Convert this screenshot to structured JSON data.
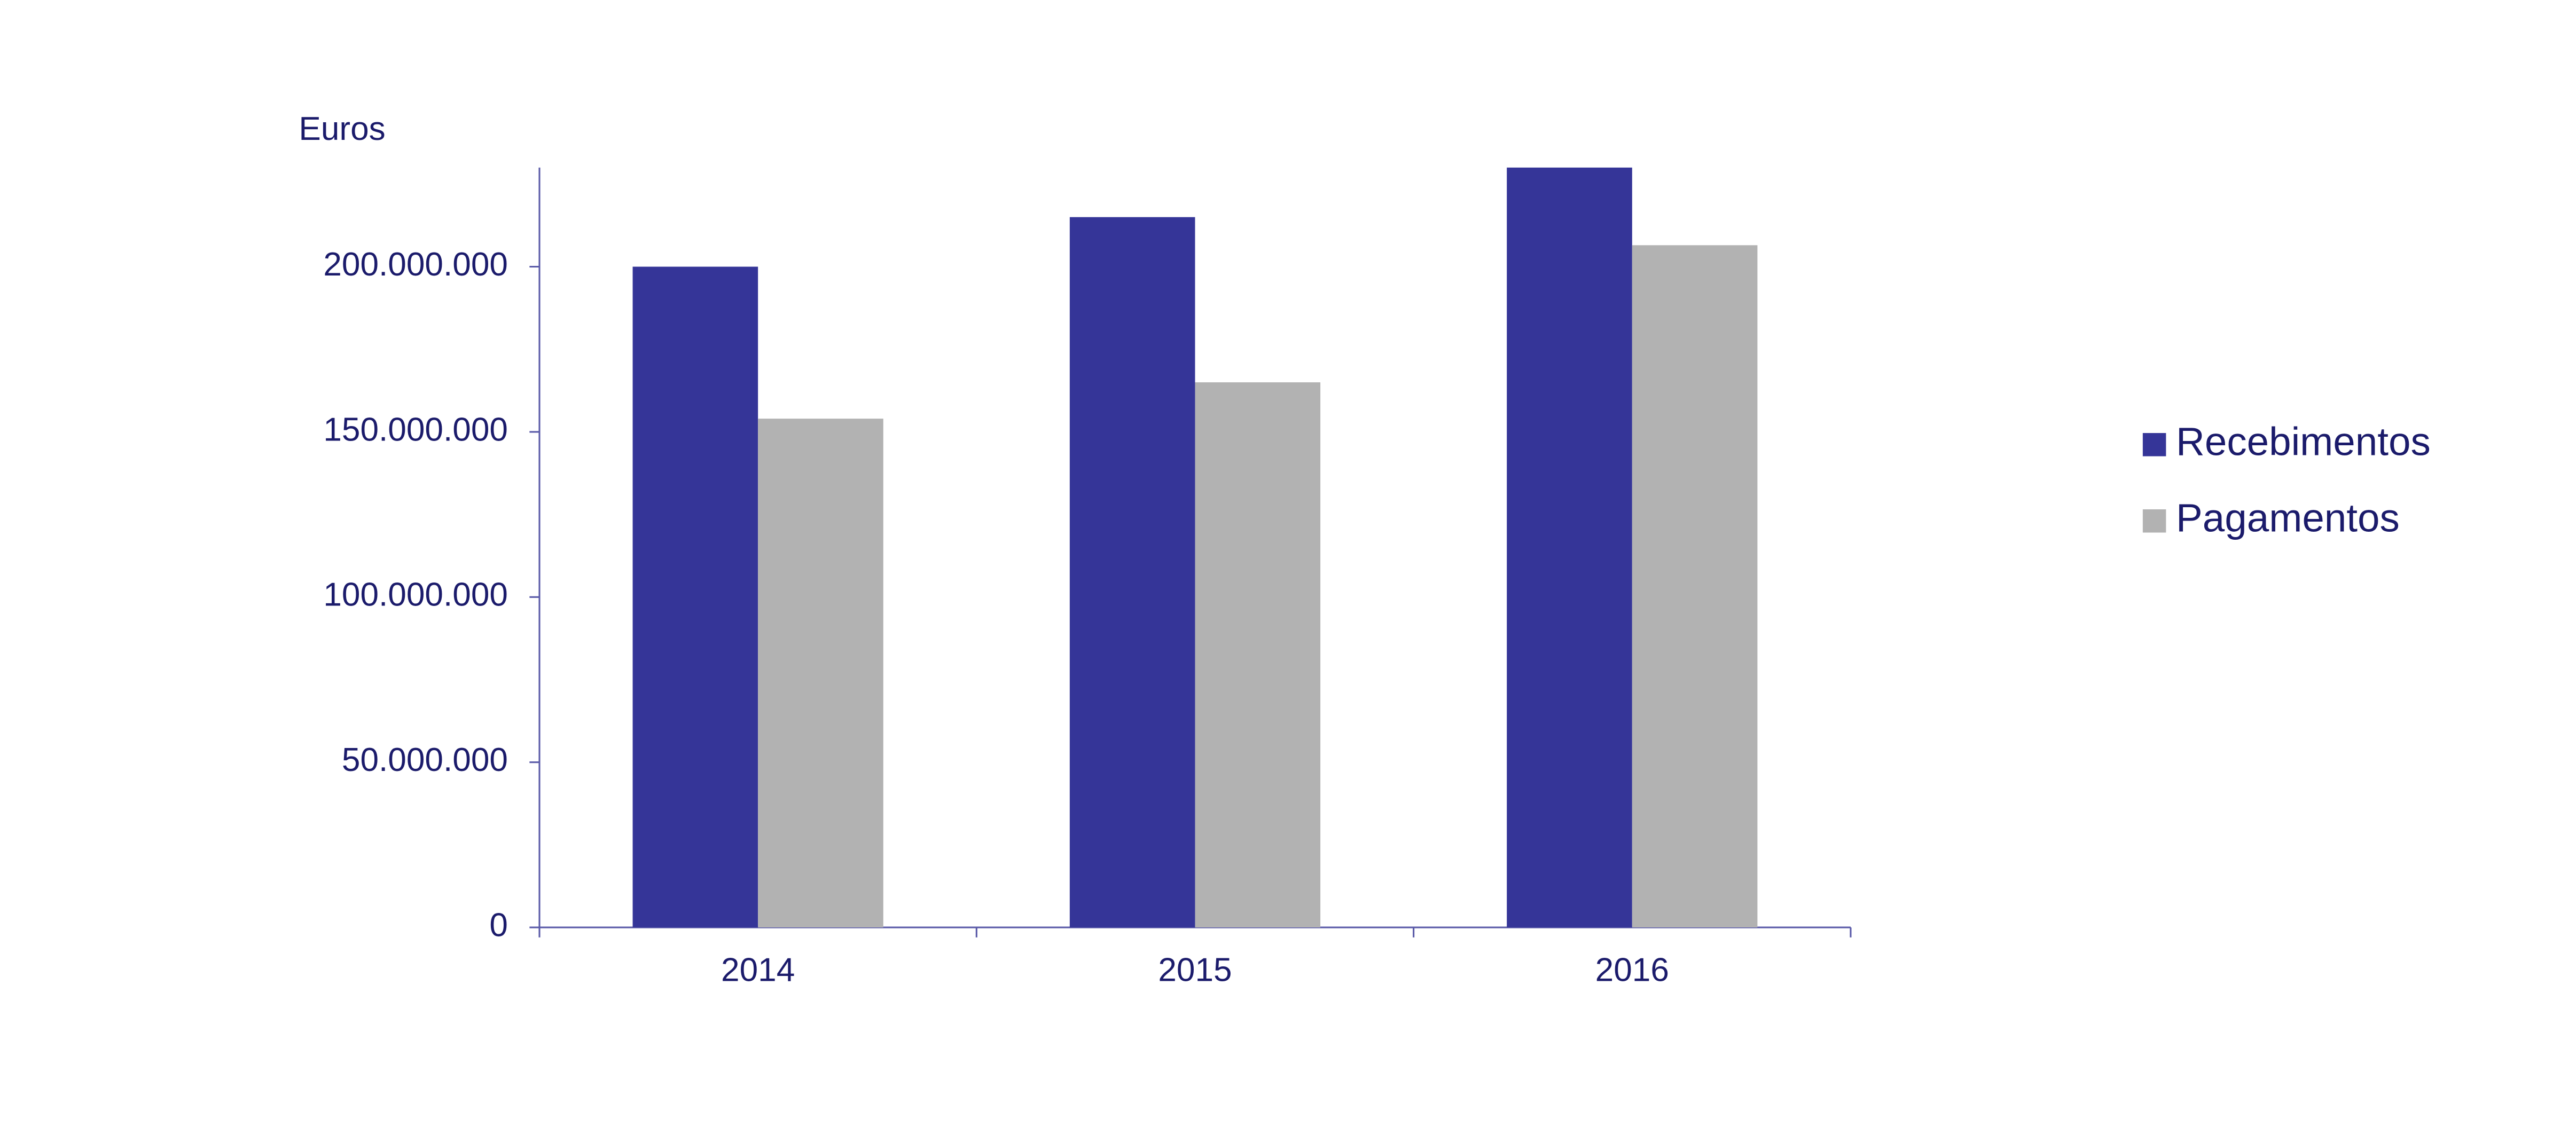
{
  "chart_data": {
    "type": "bar",
    "y_label": "Euros",
    "categories": [
      "2014",
      "2015",
      "2016"
    ],
    "series": [
      {
        "name": "Recebimentos",
        "color": "#353598",
        "values": [
          200000000,
          215000000,
          230000000
        ]
      },
      {
        "name": "Pagamentos",
        "color": "#b2b2b2",
        "values": [
          154000000,
          165000000,
          206500000
        ]
      }
    ],
    "ylim": [
      0,
      230000000
    ],
    "yticks": [
      0,
      {
        "value": 50000000,
        "label": "50.000.000"
      },
      {
        "value": 100000000,
        "label": "100.000.000"
      },
      {
        "value": 150000000,
        "label": "150.000.000"
      },
      {
        "value": 200000000,
        "label": "200.000.000"
      }
    ],
    "legend": "right"
  }
}
